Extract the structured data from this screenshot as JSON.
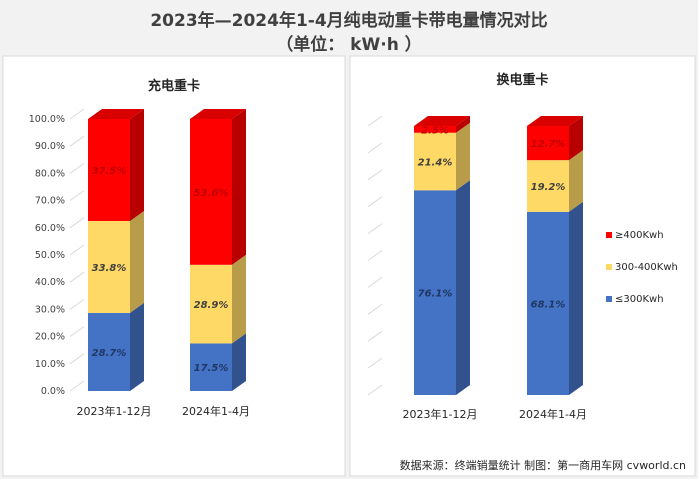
{
  "title": "2023年—2024年1-4月纯电动重卡带电量情况对比",
  "unit": "（单位： kW·h ）",
  "source": "数据来源：终端销量统计  制图：第一商用车网 cvworld.cn",
  "colors": {
    "ge400": "#ff0000",
    "mid": "#ffd966",
    "le300": "#4472c4"
  },
  "chart_data": [
    {
      "type": "bar",
      "stacked": true,
      "title": "充电重卡",
      "categories": [
        "2023年1-12月",
        "2024年1-4月"
      ],
      "ylim": [
        0,
        100
      ],
      "y_ticks": [
        "0.0%",
        "10.0%",
        "20.0%",
        "30.0%",
        "40.0%",
        "50.0%",
        "60.0%",
        "70.0%",
        "80.0%",
        "90.0%",
        "100.0%"
      ],
      "series": [
        {
          "name": "≤300Kwh",
          "values": [
            28.7,
            17.5
          ],
          "labels": [
            "28.7%",
            "17.5%"
          ]
        },
        {
          "name": "300-400Kwh",
          "values": [
            33.8,
            28.9
          ],
          "labels": [
            "33.8%",
            "28.9%"
          ]
        },
        {
          "name": "≥400Kwh",
          "values": [
            37.5,
            53.6
          ],
          "labels": [
            "37.5%",
            "53.6%"
          ]
        }
      ]
    },
    {
      "type": "bar",
      "stacked": true,
      "title": "换电重卡",
      "categories": [
        "2023年1-12月",
        "2024年1-4月"
      ],
      "ylim": [
        0,
        100
      ],
      "legend_position": "right",
      "series": [
        {
          "name": "≤300Kwh",
          "values": [
            76.1,
            68.1
          ],
          "labels": [
            "76.1%",
            "68.1%"
          ]
        },
        {
          "name": "300-400Kwh",
          "values": [
            21.4,
            19.2
          ],
          "labels": [
            "21.4%",
            "19.2%"
          ]
        },
        {
          "name": "≥400Kwh",
          "values": [
            2.5,
            12.7
          ],
          "labels": [
            "2.5%",
            "12.7%"
          ]
        }
      ],
      "legend": [
        "≥400Kwh",
        "300-400Kwh",
        "≤300Kwh"
      ]
    }
  ]
}
